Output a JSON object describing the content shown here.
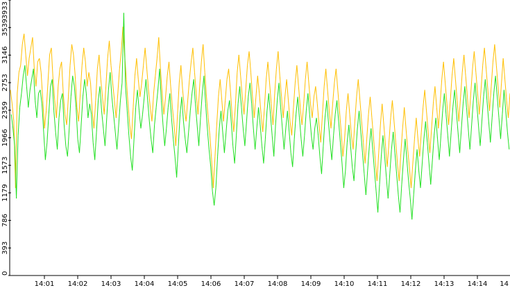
{
  "chart_data": {
    "type": "line",
    "title": "",
    "xlabel": "",
    "ylabel": "",
    "ylim": [
      0,
      3933
    ],
    "y_ticks": [
      "0",
      "393",
      "786",
      "1179",
      "1573",
      "1966",
      "2359",
      "2753",
      "3146",
      "3539",
      "3933"
    ],
    "x_ticks": [
      "14:01",
      "14:02",
      "14:03",
      "14:04",
      "14:05",
      "14:06",
      "14:07",
      "14:08",
      "14:09",
      "14:10",
      "14:11",
      "14:12",
      "14:13",
      "14:14",
      "14"
    ],
    "x_range_minutes": [
      0,
      14.5
    ],
    "grid": false,
    "legend": "none",
    "colors": {
      "positive": "#ffbf00",
      "negative": "#22e022",
      "axis": "#000000",
      "background": "#ffffff"
    },
    "sample_interval_seconds": 1,
    "series": [
      {
        "color": "#ffbf00",
        "values": [
          2650,
          2450,
          2200,
          1250,
          2600,
          2900,
          3000,
          3300,
          3450,
          3150,
          2850,
          3100,
          3250,
          3400,
          2950,
          2700,
          3050,
          3100,
          2900,
          2500,
          2100,
          2350,
          2750,
          3150,
          3250,
          2800,
          2500,
          2250,
          2700,
          2950,
          3050,
          2600,
          2300,
          2150,
          2550,
          3000,
          3300,
          3150,
          2850,
          2400,
          2200,
          2600,
          3000,
          3250,
          3050,
          2700,
          2900,
          2750,
          2350,
          2100,
          2500,
          2950,
          3150,
          2800,
          2550,
          2300,
          2700,
          3100,
          3350,
          3000,
          2750,
          2500,
          2250,
          2600,
          2950,
          3200,
          3550,
          3150,
          2800,
          2450,
          2150,
          1950,
          2400,
          2850,
          3100,
          2800,
          2550,
          2750,
          3000,
          3250,
          2950,
          2650,
          2400,
          2200,
          2600,
          2850,
          3100,
          3400,
          2950,
          2600,
          2300,
          2550,
          2850,
          3050,
          2700,
          2400,
          2150,
          1850,
          2300,
          2750,
          3000,
          2650,
          2400,
          2200,
          2500,
          2800,
          3050,
          3250,
          2900,
          2600,
          2300,
          2700,
          3050,
          3300,
          2900,
          2550,
          2250,
          2000,
          1650,
          1250,
          1700,
          2150,
          2550,
          2800,
          2500,
          2200,
          2500,
          2800,
          2950,
          2650,
          2300,
          2050,
          2450,
          2900,
          3150,
          2850,
          2550,
          2300,
          2650,
          3000,
          3200,
          2900,
          2550,
          2250,
          2550,
          2850,
          2600,
          2300,
          2050,
          2400,
          2800,
          3050,
          2750,
          2450,
          2150,
          2600,
          2950,
          3200,
          2850,
          2550,
          2250,
          2550,
          2800,
          2500,
          2200,
          2000,
          2400,
          2750,
          3000,
          2700,
          2400,
          2150,
          2450,
          2800,
          3050,
          2750,
          2450,
          2250,
          2550,
          2700,
          2450,
          2150,
          1900,
          2300,
          2700,
          2950,
          2650,
          2350,
          2100,
          2450,
          2750,
          2950,
          2650,
          2350,
          2050,
          1700,
          1950,
          2350,
          2600,
          2300,
          2000,
          1800,
          2200,
          2550,
          2800,
          2500,
          2200,
          1900,
          1600,
          1950,
          2300,
          2550,
          2250,
          1950,
          1650,
          1350,
          1750,
          2150,
          2450,
          2150,
          1850,
          1550,
          1900,
          2250,
          2500,
          2200,
          1900,
          1600,
          1350,
          1750,
          2100,
          2400,
          2100,
          1800,
          1550,
          1250,
          1600,
          1950,
          2250,
          1950,
          1700,
          2050,
          2400,
          2650,
          2350,
          2050,
          1750,
          2100,
          2450,
          2700,
          2400,
          2100,
          2450,
          2800,
          3050,
          2750,
          2450,
          2150,
          2500,
          2850,
          3100,
          2800,
          2500,
          2200,
          2550,
          2900,
          3150,
          2850,
          2550,
          2250,
          2600,
          2950,
          3200,
          2900,
          2600,
          2300,
          2650,
          3000,
          3250,
          2950,
          2650,
          2350,
          2700,
          3050,
          3300,
          3000,
          2700,
          2400,
          2750,
          3100,
          2800,
          2500,
          2250,
          2600
        ],
        "name": ""
      },
      {
        "color": "#22e022",
        "values": [
          2300,
          2100,
          1850,
          1100,
          2000,
          2400,
          2600,
          2850,
          3000,
          2700,
          2400,
          2650,
          2800,
          2950,
          2500,
          2250,
          2600,
          2650,
          2450,
          2050,
          1650,
          1900,
          2300,
          2700,
          2800,
          2350,
          2050,
          1800,
          2250,
          2500,
          2600,
          2150,
          1850,
          1700,
          2100,
          2550,
          2850,
          2700,
          2400,
          1950,
          1750,
          2150,
          2550,
          2800,
          2600,
          2250,
          2450,
          2300,
          1900,
          1650,
          2050,
          2500,
          2700,
          2350,
          2100,
          1850,
          2250,
          2650,
          2900,
          2550,
          2300,
          2050,
          1800,
          2150,
          2500,
          2750,
          3750,
          2700,
          2350,
          2000,
          1700,
          1500,
          1950,
          2400,
          2650,
          2350,
          2100,
          2300,
          2550,
          2800,
          2500,
          2200,
          1950,
          1750,
          2150,
          2400,
          2650,
          2950,
          2500,
          2150,
          1850,
          2100,
          2400,
          2600,
          2250,
          1950,
          1700,
          1400,
          1850,
          2300,
          2550,
          2200,
          1950,
          1750,
          2050,
          2350,
          2600,
          2800,
          2450,
          2150,
          1850,
          2250,
          2600,
          2850,
          2450,
          2100,
          1800,
          1550,
          1200,
          1000,
          1250,
          1700,
          2100,
          2350,
          2050,
          1750,
          2050,
          2350,
          2500,
          2200,
          1850,
          1600,
          2000,
          2450,
          2700,
          2400,
          2100,
          1850,
          2200,
          2550,
          2750,
          2450,
          2100,
          1800,
          2100,
          2400,
          2150,
          1850,
          1600,
          1950,
          2350,
          2600,
          2300,
          2000,
          1700,
          2150,
          2500,
          2750,
          2400,
          2100,
          1800,
          2100,
          2350,
          2050,
          1750,
          1550,
          1950,
          2300,
          2550,
          2250,
          1950,
          1700,
          2000,
          2350,
          2600,
          2300,
          2000,
          1800,
          2100,
          2250,
          2000,
          1700,
          1450,
          1850,
          2250,
          2500,
          2200,
          1900,
          1650,
          2000,
          2300,
          2500,
          2200,
          1900,
          1600,
          1250,
          1500,
          1900,
          2150,
          1850,
          1550,
          1350,
          1750,
          2100,
          2350,
          2050,
          1750,
          1450,
          1150,
          1500,
          1850,
          2100,
          1800,
          1500,
          1200,
          900,
          1300,
          1700,
          2000,
          1700,
          1400,
          1100,
          1450,
          1800,
          2050,
          1750,
          1450,
          1150,
          900,
          1300,
          1650,
          1950,
          1650,
          1350,
          1100,
          800,
          1150,
          1500,
          1800,
          1500,
          1250,
          1600,
          1950,
          2200,
          1900,
          1600,
          1300,
          1650,
          2000,
          2250,
          1950,
          1650,
          2000,
          2350,
          2600,
          2300,
          2000,
          1700,
          2050,
          2400,
          2650,
          2350,
          2050,
          1750,
          2100,
          2450,
          2700,
          2400,
          2100,
          1800,
          2150,
          2500,
          2750,
          2450,
          2150,
          1850,
          2200,
          2550,
          2800,
          2500,
          2200,
          1900,
          2250,
          2600,
          2850,
          2550,
          2250,
          1950,
          2300,
          2650,
          2350,
          2050,
          1800,
          2150
        ],
        "name": ""
      }
    ]
  }
}
